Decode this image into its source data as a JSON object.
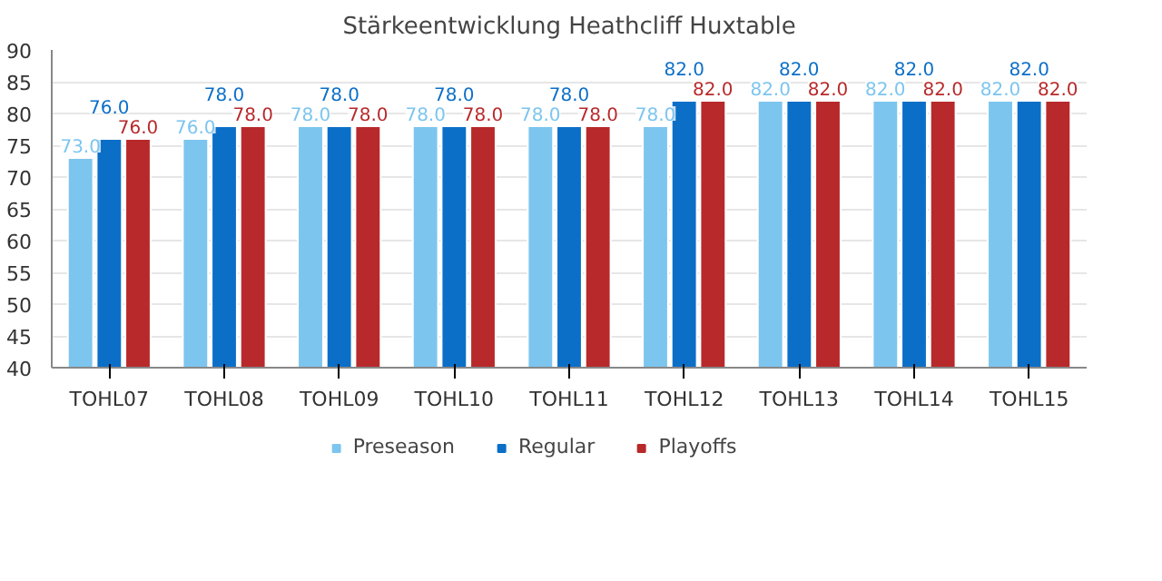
{
  "chart_data": {
    "type": "bar",
    "title": "Stärkeentwicklung Heathcliff Huxtable",
    "categories": [
      "TOHL07",
      "TOHL08",
      "TOHL09",
      "TOHL10",
      "TOHL11",
      "TOHL12",
      "TOHL13",
      "TOHL14",
      "TOHL15"
    ],
    "series": [
      {
        "name": "Preseason",
        "color": "#7cc5ef",
        "values": [
          73,
          76,
          78,
          78,
          78,
          78,
          82,
          82,
          82
        ],
        "value_labels": [
          "73.0",
          "76.0",
          "78.0",
          "78.0",
          "78.0",
          "78.0",
          "82.0",
          "82.0",
          "82.0"
        ]
      },
      {
        "name": "Regular",
        "color": "#0b6fc8",
        "values": [
          76,
          78,
          78,
          78,
          78,
          82,
          82,
          82,
          82
        ],
        "value_labels": [
          "76.0",
          "78.0",
          "78.0",
          "78.0",
          "78.0",
          "82.0",
          "82.0",
          "82.0",
          "82.0"
        ]
      },
      {
        "name": "Playoffs",
        "color": "#b8292b",
        "values": [
          76,
          78,
          78,
          78,
          78,
          82,
          82,
          82,
          82
        ],
        "value_labels": [
          "76.0",
          "78.0",
          "78.0",
          "78.0",
          "78.0",
          "82.0",
          "82.0",
          "82.0",
          "82.0"
        ]
      }
    ],
    "ylim": [
      40,
      90
    ],
    "yticks": [
      40,
      45,
      50,
      55,
      60,
      65,
      70,
      75,
      80,
      85,
      90
    ],
    "grid": "y",
    "legend": "bottom"
  }
}
